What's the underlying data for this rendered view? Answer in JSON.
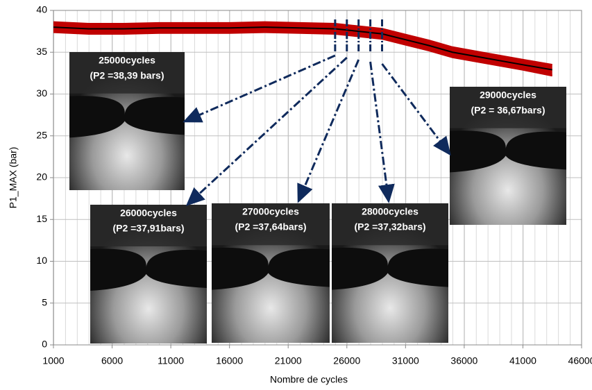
{
  "chart_data": {
    "type": "line",
    "x_label": "Nombre de cycles",
    "y_label": "P1_MAX (bar)",
    "x": [
      1000,
      4000,
      7000,
      10000,
      13000,
      16000,
      19000,
      22000,
      25000,
      27000,
      29000,
      31000,
      33000,
      35000,
      37000,
      39000,
      41000,
      43500
    ],
    "series": [
      {
        "color": "#c00000",
        "values": [
          38.6,
          38.4,
          38.4,
          38.5,
          38.5,
          38.5,
          38.6,
          38.5,
          38.4,
          38.1,
          37.8,
          37.1,
          36.4,
          35.6,
          35.1,
          34.6,
          34.1,
          33.5
        ]
      },
      {
        "color": "#c00000",
        "values": [
          37.4,
          37.2,
          37.2,
          37.3,
          37.3,
          37.3,
          37.4,
          37.3,
          37.2,
          36.9,
          36.6,
          35.9,
          35.2,
          34.4,
          33.9,
          33.4,
          32.9,
          32.2
        ]
      },
      {
        "color": "#000000",
        "values": [
          38.0,
          37.8,
          37.8,
          37.9,
          37.9,
          37.9,
          38.0,
          37.9,
          37.8,
          37.5,
          37.2,
          36.5,
          35.8,
          35.0,
          34.5,
          34.0,
          33.5,
          32.9
        ]
      }
    ],
    "xlim": [
      1000,
      46000
    ],
    "xticks": [
      1000,
      6000,
      11000,
      16000,
      21000,
      26000,
      31000,
      36000,
      41000,
      46000
    ],
    "ylim": [
      0,
      40
    ],
    "yticks": [
      0,
      5,
      10,
      15,
      20,
      25,
      30,
      35,
      40
    ],
    "grid": true,
    "annotations": [
      {
        "x": 25000,
        "title": "25000cycles",
        "text": "(P2 =38,39 bars)"
      },
      {
        "x": 26000,
        "title": "26000cycles",
        "text": "(P2 =37,91bars)"
      },
      {
        "x": 27000,
        "title": "27000cycles",
        "text": "(P2 =37,64bars)"
      },
      {
        "x": 28000,
        "title": "28000cycles",
        "text": "(P2 =37,32bars)"
      },
      {
        "x": 29000,
        "title": "29000cycles",
        "text": "(P2 = 36,67bars)"
      }
    ]
  }
}
